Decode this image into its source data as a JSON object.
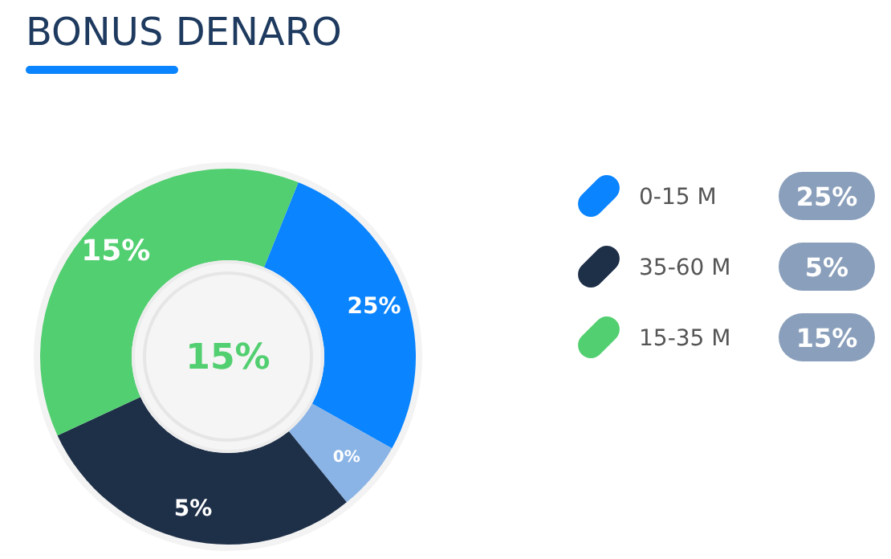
{
  "chart_data": {
    "type": "donut",
    "title": "BONUS DENARO",
    "categories": [
      "0-15 M",
      null,
      "35-60 M",
      "15-35 M"
    ],
    "values": [
      27,
      6,
      29,
      38
    ],
    "colors": [
      "#0a84ff",
      "#8ab4e6",
      "#1e2f48",
      "#52cf70"
    ],
    "annotations": [
      "25%",
      "0%",
      "5%",
      "15%",
      "15%"
    ],
    "legend": "right"
  }
}
